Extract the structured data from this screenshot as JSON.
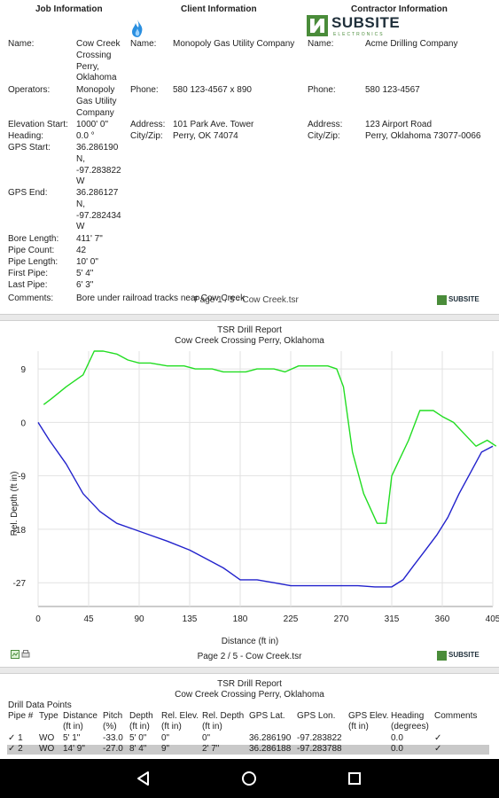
{
  "page1": {
    "headers": {
      "job": "Job Information",
      "client": "Client Information",
      "contractor": "Contractor Information"
    },
    "job": {
      "name_label": "Name:",
      "name_lines": [
        "Cow Creek",
        "Crossing",
        "Perry,",
        "Oklahoma"
      ],
      "operators_label": "Operators:",
      "operators_lines": [
        "Monopoly",
        "Gas Utility",
        "Company"
      ],
      "elev_label": "Elevation Start:",
      "elev_value": "1000' 0\"",
      "heading_label": "Heading:",
      "heading_value": "0.0 °",
      "gps_start_label": "GPS Start:",
      "gps_start_lines": [
        "36.286190",
        "N,",
        "-97.283822",
        "W"
      ],
      "gps_end_label": "GPS End:",
      "gps_end_lines": [
        "36.286127",
        "N,",
        "-97.282434",
        "W"
      ],
      "bore_length_label": "Bore Length:",
      "bore_length_value": "411' 7\"",
      "pipe_count_label": "Pipe Count:",
      "pipe_count_value": "42",
      "pipe_length_label": "Pipe Length:",
      "pipe_length_value": "10' 0\"",
      "first_pipe_label": "First Pipe:",
      "first_pipe_value": "5' 4\"",
      "last_pipe_label": "Last Pipe:",
      "last_pipe_value": "6' 3\"",
      "comments_label": "Comments:",
      "comments_value": "Bore under railroad tracks near Cow Creek"
    },
    "client": {
      "name_label": "Name:",
      "name_value": "Monopoly Gas Utility Company",
      "phone_label": "Phone:",
      "phone_value": "580 123-4567 x 890",
      "address_label": "Address:",
      "address_value": "101 Park Ave. Tower",
      "cityzip_label": "City/Zip:",
      "cityzip_value": "Perry, OK 74074"
    },
    "contractor": {
      "name_label": "Name:",
      "name_value": "Acme Drilling Company",
      "phone_label": "Phone:",
      "phone_value": "580 123-4567",
      "address_label": "Address:",
      "address_value": "123 Airport Road",
      "cityzip_label": "City/Zip:",
      "cityzip_value": "Perry, Oklahoma 73077-0066"
    },
    "logo_text": "SUBSITE",
    "logo_sub": "ELECTRONICS",
    "footer": "Page 1 / 5 - Cow Creek.tsr"
  },
  "page2": {
    "report_title": "TSR Drill Report",
    "report_subtitle": "Cow Creek Crossing Perry, Oklahoma",
    "footer": "Page 2 / 5 - Cow Creek.tsr",
    "logo_text": "SUBSITE"
  },
  "chart_data": {
    "type": "line",
    "title": "TSR Drill Report",
    "subtitle": "Cow Creek Crossing Perry, Oklahoma",
    "xlabel": "Distance (ft in)",
    "ylabel": "Rel. Depth (ft in)",
    "xlim": [
      0,
      405
    ],
    "ylim": [
      -31,
      12
    ],
    "xticks": [
      0,
      45,
      90,
      135,
      180,
      225,
      270,
      315,
      360,
      405
    ],
    "xtick_labels": [
      "0",
      "45",
      "90",
      "135",
      "180",
      "225",
      "270",
      "315",
      "360",
      "405"
    ],
    "yticks": [
      9,
      0,
      -9,
      -18,
      -27
    ],
    "ytick_labels": [
      "9",
      "0",
      "-9",
      "-18",
      "-27"
    ],
    "grid": true,
    "series": [
      {
        "color": "#22dd22",
        "x": [
          5,
          12,
          25,
          40,
          50,
          58,
          70,
          80,
          90,
          100,
          115,
          130,
          140,
          155,
          165,
          175,
          185,
          195,
          210,
          220,
          232,
          240,
          250,
          258,
          266,
          272,
          280,
          290,
          302,
          310,
          315,
          320,
          330,
          340,
          352,
          360,
          370,
          380,
          390,
          400,
          408
        ],
        "y": [
          3,
          4,
          6,
          8,
          12,
          12,
          11.5,
          10.5,
          10,
          10,
          9.5,
          9.5,
          9,
          9,
          8.5,
          8.5,
          8.5,
          9,
          9,
          8.5,
          9.5,
          9.5,
          9.5,
          9.5,
          9,
          6,
          -5,
          -12,
          -17,
          -17,
          -9,
          -7,
          -3,
          2,
          2,
          1,
          0,
          -2,
          -4,
          -3,
          -4
        ]
      },
      {
        "color": "#2222cc",
        "x": [
          0,
          10,
          25,
          40,
          55,
          70,
          85,
          100,
          115,
          135,
          150,
          165,
          180,
          195,
          210,
          225,
          240,
          255,
          270,
          285,
          300,
          315,
          325,
          335,
          345,
          355,
          365,
          375,
          385,
          395,
          405
        ],
        "y": [
          0,
          -3,
          -7,
          -12,
          -15,
          -17,
          -18,
          -19,
          -20,
          -21.5,
          -23,
          -24.5,
          -26.5,
          -26.5,
          -27,
          -27.5,
          -27.5,
          -27.5,
          -27.5,
          -27.5,
          -27.7,
          -27.7,
          -26.5,
          -24,
          -21.5,
          -19,
          -16,
          -12,
          -8.5,
          -5,
          -4
        ]
      }
    ]
  },
  "page3": {
    "report_title": "TSR Drill Report",
    "report_subtitle": "Cow Creek Crossing Perry, Oklahoma",
    "section_label": "Drill Data Points",
    "columns": [
      {
        "label": "Pipe #",
        "sub": ""
      },
      {
        "label": "Type",
        "sub": ""
      },
      {
        "label": "Distance",
        "sub": "(ft in)"
      },
      {
        "label": "Pitch",
        "sub": "(%)"
      },
      {
        "label": "Depth",
        "sub": "(ft in)"
      },
      {
        "label": "Rel. Elev.",
        "sub": "(ft in)"
      },
      {
        "label": "Rel. Depth",
        "sub": "(ft in)"
      },
      {
        "label": "GPS Lat.",
        "sub": ""
      },
      {
        "label": "GPS Lon.",
        "sub": ""
      },
      {
        "label": "GPS Elev.",
        "sub": "(ft in)"
      },
      {
        "label": "Heading",
        "sub": "(degrees)"
      },
      {
        "label": "Comments",
        "sub": ""
      }
    ],
    "rows": [
      [
        "✓ 1",
        "WO",
        "5' 1\"",
        "-33.0",
        "5' 0\"",
        "0\"",
        "0\"",
        "36.286190",
        "-97.283822",
        "",
        "0.0",
        "✓"
      ],
      [
        "✓ 2",
        "WO",
        "14' 9\"",
        "-27.0",
        "8' 4\"",
        "9\"",
        "2' 7\"",
        "36.286188",
        "-97.283788",
        "",
        "0.0",
        "✓"
      ]
    ]
  },
  "navbar": {
    "back": "back",
    "home": "home",
    "recents": "recents"
  }
}
